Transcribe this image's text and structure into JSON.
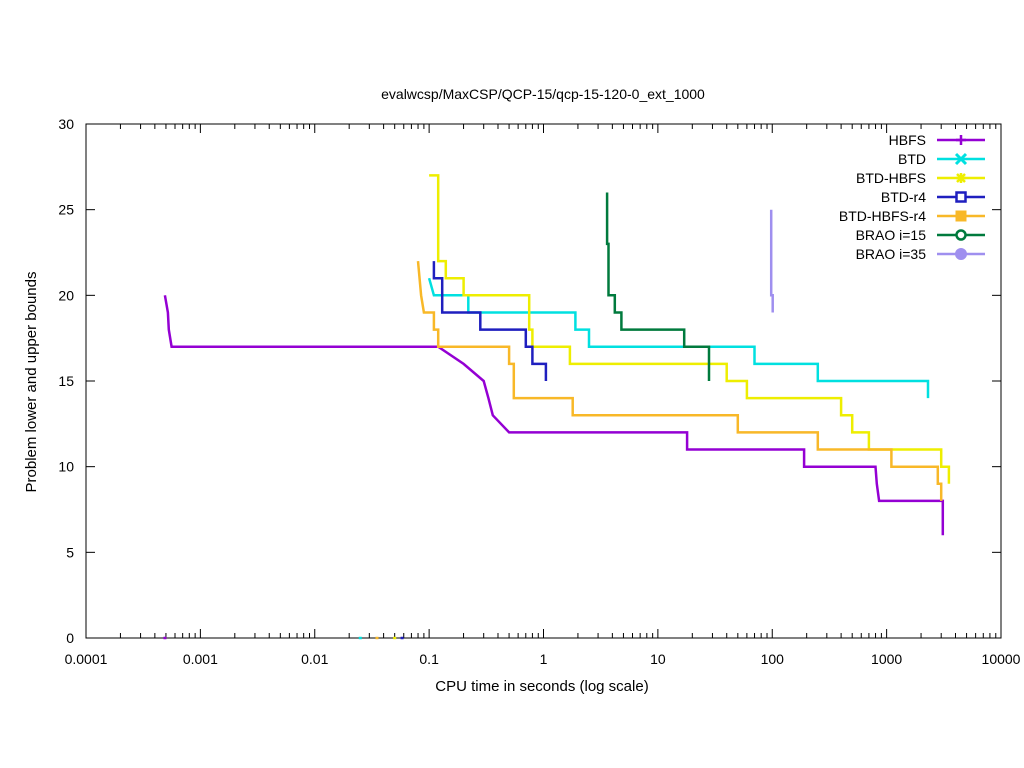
{
  "chart_data": {
    "type": "line",
    "title": "evalwcsp/MaxCSP/QCP-15/qcp-15-120-0_ext_1000",
    "xlabel": "CPU time in seconds (log scale)",
    "ylabel": "Problem lower and upper bounds",
    "xscale": "log",
    "xlim": [
      0.0001,
      10000
    ],
    "ylim": [
      0,
      30
    ],
    "grid": false,
    "legend_position": "top-right",
    "xticks": [
      {
        "value": 0.0001,
        "label": "0.0001"
      },
      {
        "value": 0.001,
        "label": "0.001"
      },
      {
        "value": 0.01,
        "label": "0.01"
      },
      {
        "value": 0.1,
        "label": "0.1"
      },
      {
        "value": 1,
        "label": "1"
      },
      {
        "value": 10,
        "label": "10"
      },
      {
        "value": 100,
        "label": "100"
      },
      {
        "value": 1000,
        "label": "1000"
      },
      {
        "value": 10000,
        "label": "10000"
      }
    ],
    "yticks": [
      {
        "value": 0,
        "label": "0"
      },
      {
        "value": 5,
        "label": "5"
      },
      {
        "value": 10,
        "label": "10"
      },
      {
        "value": 15,
        "label": "15"
      },
      {
        "value": 20,
        "label": "20"
      },
      {
        "value": 25,
        "label": "25"
      },
      {
        "value": 30,
        "label": "30"
      }
    ],
    "series": [
      {
        "name": "HBFS",
        "color": "#9400d3",
        "marker": "plus",
        "upper": [
          [
            0.00049,
            20
          ],
          [
            0.00052,
            19
          ],
          [
            0.00053,
            18
          ],
          [
            0.00056,
            17
          ],
          [
            0.12,
            17
          ],
          [
            0.2,
            16
          ],
          [
            0.3,
            15
          ],
          [
            0.33,
            14
          ],
          [
            0.36,
            13
          ],
          [
            0.5,
            12
          ],
          [
            18,
            12
          ],
          [
            18,
            11
          ],
          [
            190,
            11
          ],
          [
            190,
            10
          ],
          [
            800,
            10
          ],
          [
            820,
            9
          ],
          [
            860,
            8
          ],
          [
            3100,
            8
          ],
          [
            3100,
            6
          ]
        ],
        "lower": [
          [
            0.00049,
            0
          ]
        ]
      },
      {
        "name": "BTD",
        "color": "#00e0e0",
        "marker": "x",
        "upper": [
          [
            0.1,
            21
          ],
          [
            0.11,
            20
          ],
          [
            0.22,
            20
          ],
          [
            0.22,
            19
          ],
          [
            1.9,
            19
          ],
          [
            1.9,
            18
          ],
          [
            2.5,
            18
          ],
          [
            2.5,
            17
          ],
          [
            70,
            17
          ],
          [
            70,
            16
          ],
          [
            250,
            16
          ],
          [
            250,
            15
          ],
          [
            2300,
            15
          ],
          [
            2300,
            14
          ]
        ],
        "lower": [
          [
            0.025,
            0
          ]
        ]
      },
      {
        "name": "BTD-HBFS",
        "color": "#eeee00",
        "marker": "star",
        "upper": [
          [
            0.1,
            27
          ],
          [
            0.12,
            27
          ],
          [
            0.12,
            22
          ],
          [
            0.14,
            22
          ],
          [
            0.14,
            21
          ],
          [
            0.2,
            21
          ],
          [
            0.2,
            20
          ],
          [
            0.75,
            20
          ],
          [
            0.75,
            18
          ],
          [
            0.8,
            18
          ],
          [
            0.8,
            17
          ],
          [
            1.7,
            17
          ],
          [
            1.7,
            16
          ],
          [
            40,
            16
          ],
          [
            40,
            15
          ],
          [
            60,
            15
          ],
          [
            60,
            14
          ],
          [
            400,
            14
          ],
          [
            400,
            13
          ],
          [
            500,
            13
          ],
          [
            500,
            12
          ],
          [
            700,
            12
          ],
          [
            700,
            11
          ],
          [
            3000,
            11
          ],
          [
            3000,
            10
          ],
          [
            3500,
            10
          ],
          [
            3500,
            9
          ]
        ],
        "lower": [
          [
            0.05,
            0
          ]
        ]
      },
      {
        "name": "BTD-r4",
        "color": "#1f1fbf",
        "marker": "open-square",
        "upper": [
          [
            0.11,
            22
          ],
          [
            0.11,
            21
          ],
          [
            0.13,
            21
          ],
          [
            0.13,
            20
          ],
          [
            0.13,
            19
          ],
          [
            0.28,
            19
          ],
          [
            0.28,
            18
          ],
          [
            0.7,
            18
          ],
          [
            0.7,
            17
          ],
          [
            0.8,
            17
          ],
          [
            0.8,
            16
          ],
          [
            1.05,
            16
          ],
          [
            1.05,
            15
          ]
        ],
        "lower": [
          [
            0.058,
            0
          ]
        ]
      },
      {
        "name": "BTD-HBFS-r4",
        "color": "#f8b828",
        "marker": "filled-square",
        "upper": [
          [
            0.08,
            22
          ],
          [
            0.085,
            20
          ],
          [
            0.09,
            19
          ],
          [
            0.11,
            19
          ],
          [
            0.11,
            18
          ],
          [
            0.12,
            18
          ],
          [
            0.12,
            17
          ],
          [
            0.5,
            17
          ],
          [
            0.5,
            16
          ],
          [
            0.55,
            16
          ],
          [
            0.55,
            15
          ],
          [
            0.55,
            14
          ],
          [
            1.8,
            14
          ],
          [
            1.8,
            13
          ],
          [
            50,
            13
          ],
          [
            50,
            12
          ],
          [
            250,
            12
          ],
          [
            250,
            11
          ],
          [
            1100,
            11
          ],
          [
            1100,
            10
          ],
          [
            2800,
            10
          ],
          [
            2800,
            9
          ],
          [
            3000,
            9
          ],
          [
            3000,
            8
          ]
        ],
        "lower": [
          [
            0.035,
            0
          ]
        ]
      },
      {
        "name": "BRAO i=15",
        "color": "#007a3d",
        "marker": "open-circle",
        "upper": [
          [
            3.6,
            26
          ],
          [
            3.6,
            23
          ],
          [
            3.7,
            23
          ],
          [
            3.7,
            20
          ],
          [
            4.2,
            20
          ],
          [
            4.2,
            19
          ],
          [
            4.8,
            19
          ],
          [
            4.8,
            18
          ],
          [
            17,
            18
          ],
          [
            17,
            17
          ],
          [
            28,
            17
          ],
          [
            28,
            15
          ]
        ],
        "lower": []
      },
      {
        "name": "BRAO i=35",
        "color": "#9f8fef",
        "marker": "filled-circle",
        "upper": [
          [
            98,
            25
          ],
          [
            98,
            20
          ],
          [
            101,
            20
          ],
          [
            101,
            19
          ]
        ],
        "lower": []
      }
    ]
  }
}
